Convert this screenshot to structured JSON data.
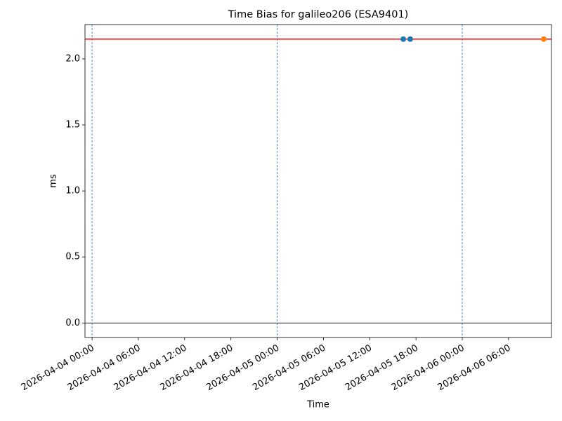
{
  "chart_data": {
    "type": "line",
    "title": "Time Bias for galileo206 (ESA9401)",
    "xlabel": "Time",
    "ylabel": "ms",
    "series": [
      {
        "color": "#1f77b4",
        "x": [
          "2026-04-05 16:21",
          "2026-04-05 17:15"
        ],
        "values": [
          2.15,
          2.15
        ]
      },
      {
        "color": "#ff7f0e",
        "x": [
          "2026-04-06 10:34"
        ],
        "values": [
          2.15
        ]
      }
    ],
    "hlines": [
      {
        "y": 2.15,
        "color": "#ff0000"
      },
      {
        "y": 0,
        "color": "#000000"
      }
    ],
    "vlines": [
      {
        "x": "2026-04-04 00:00",
        "color": "#1f77b4",
        "style": "dashed"
      },
      {
        "x": "2026-04-05 00:00",
        "color": "#1f77b4",
        "style": "dashed"
      },
      {
        "x": "2026-04-06 00:00",
        "color": "#1f77b4",
        "style": "dashed"
      }
    ],
    "xlim": [
      "2026-04-03 23:05",
      "2026-04-06 11:34"
    ],
    "xticks": [
      "2026-04-04 00:00",
      "2026-04-04 06:00",
      "2026-04-04 12:00",
      "2026-04-04 18:00",
      "2026-04-05 00:00",
      "2026-04-05 06:00",
      "2026-04-05 12:00",
      "2026-04-05 18:00",
      "2026-04-06 00:00",
      "2026-04-06 06:00"
    ],
    "ylim": [
      -0.11,
      2.26
    ],
    "yticks": [
      {
        "value": 0,
        "label": "0.0"
      },
      0.5,
      {
        "value": 1,
        "label": "1.0"
      },
      1.5,
      {
        "value": 2,
        "label": "2.0"
      }
    ],
    "grid": false
  }
}
